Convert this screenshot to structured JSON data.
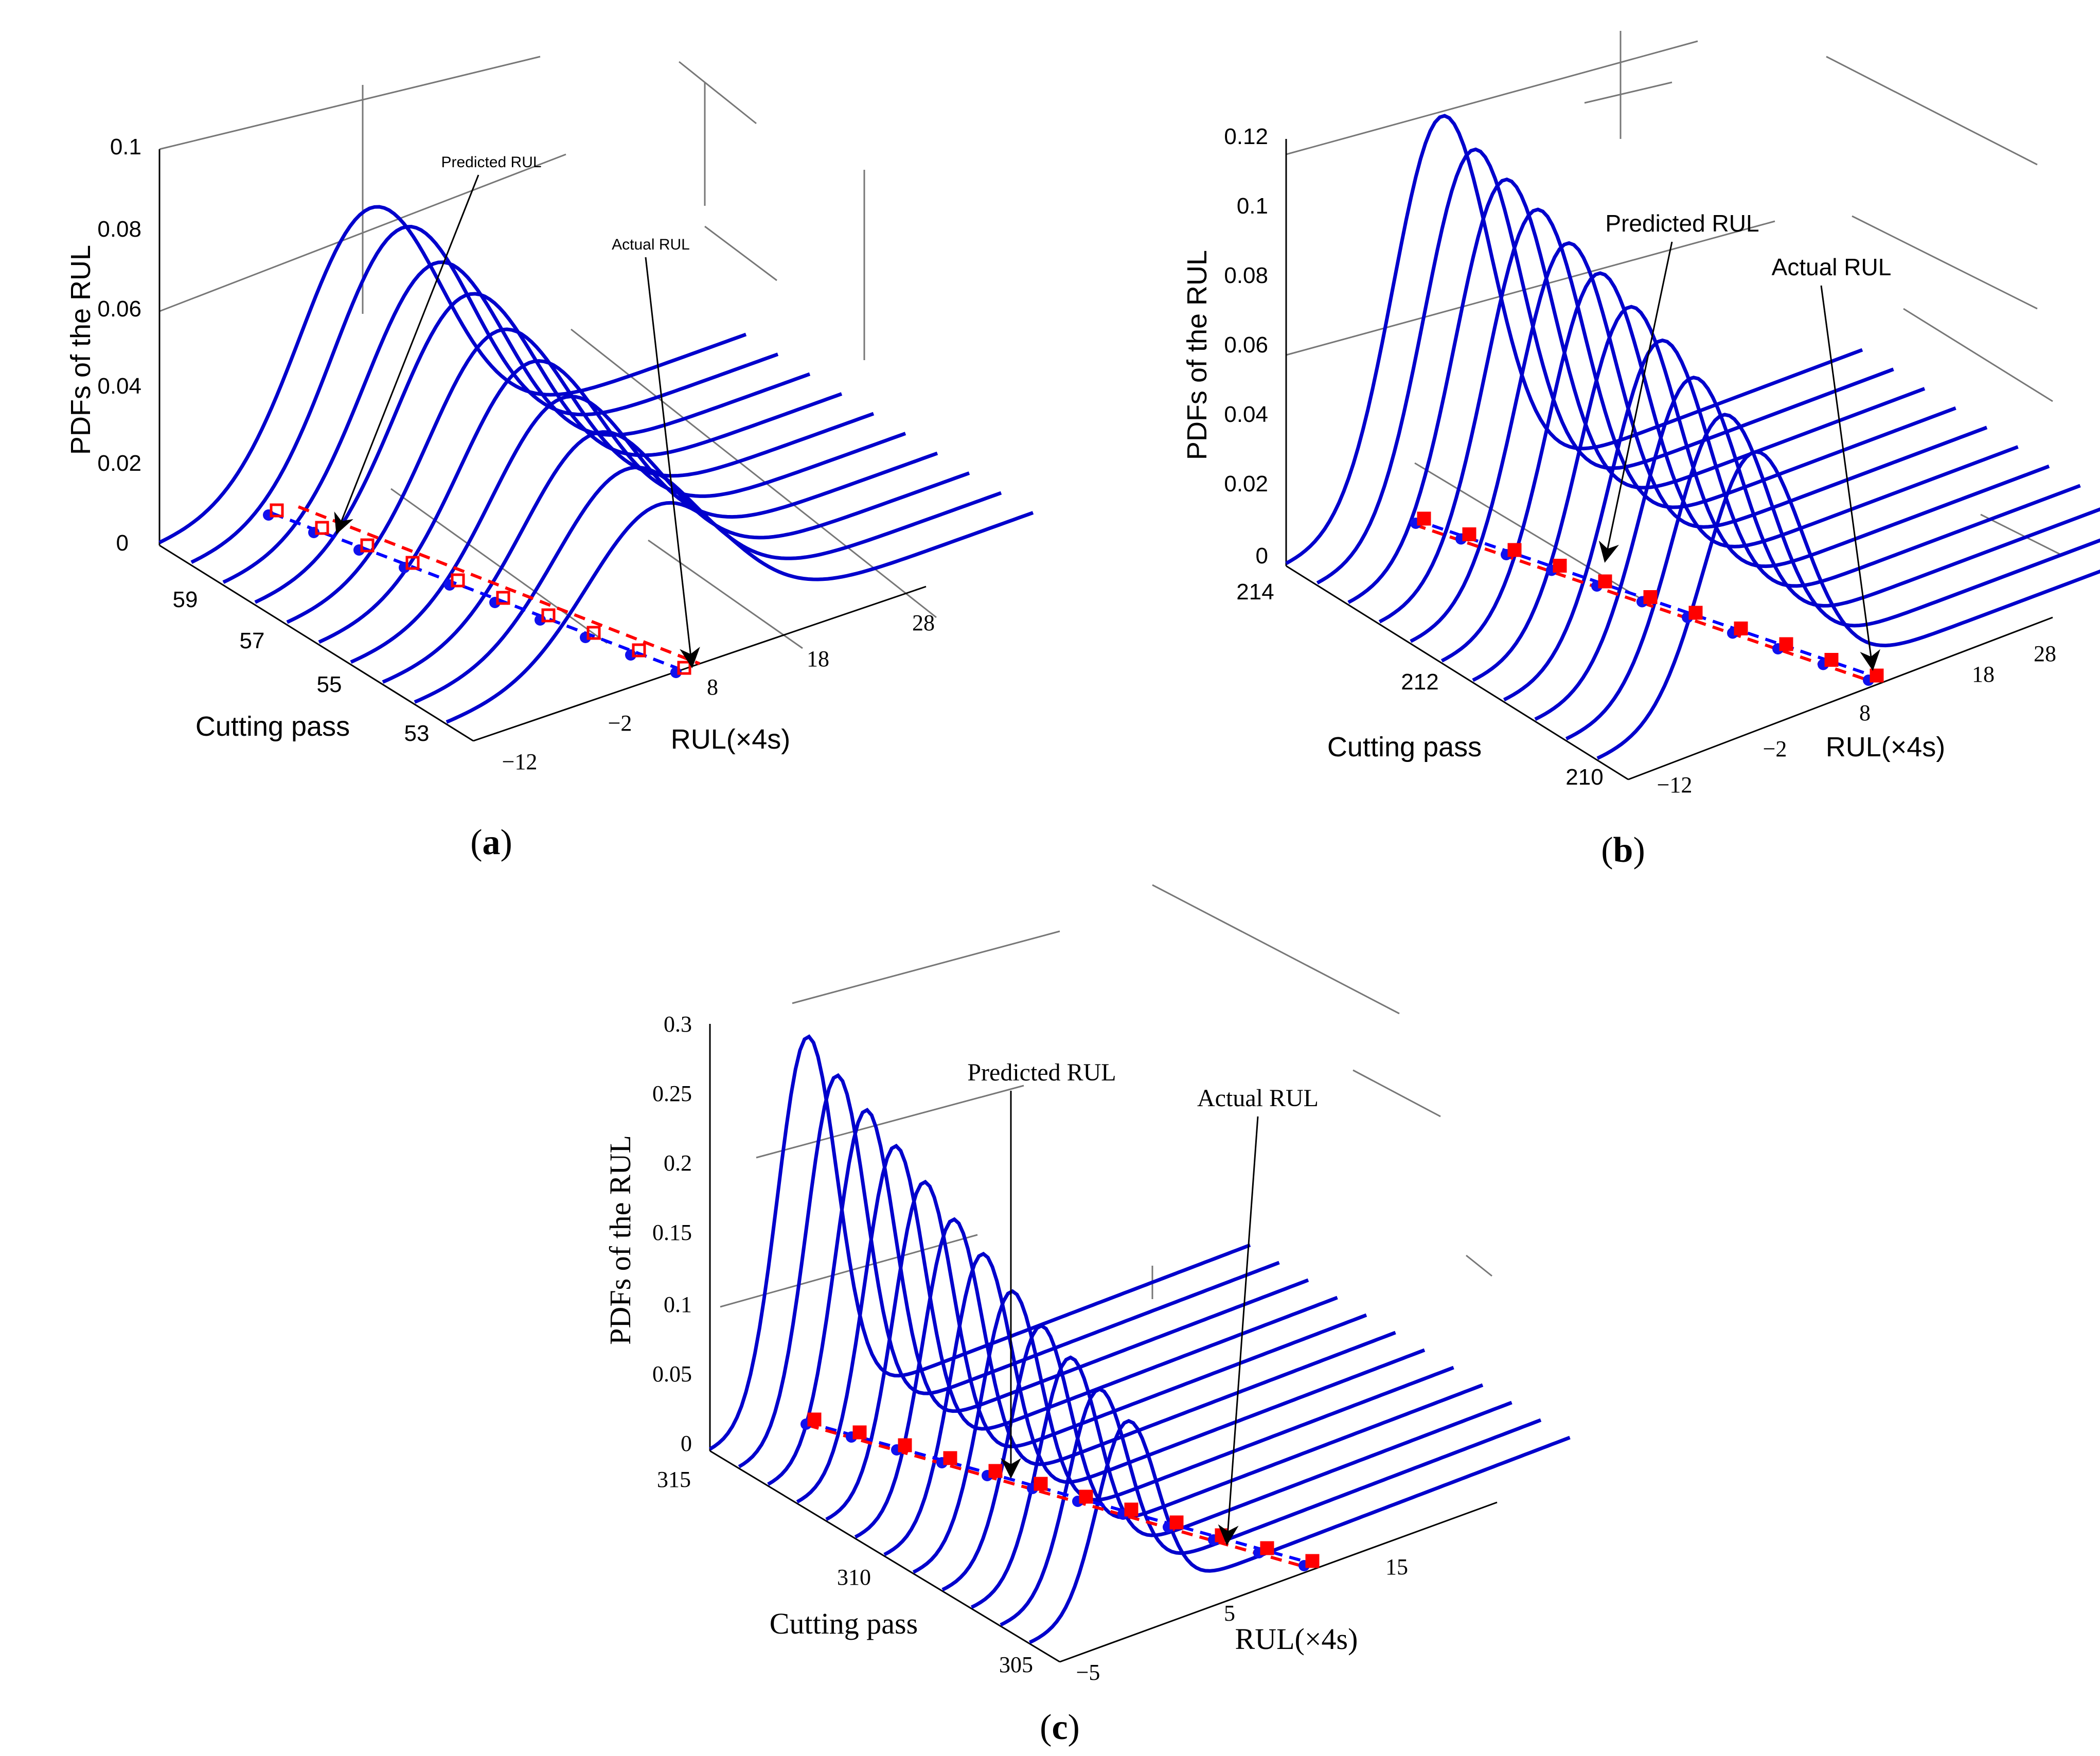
{
  "chart_data": [
    {
      "type": "line",
      "panel": "a",
      "caption_letter": "a",
      "zlabel": "PDFs of the RUL",
      "xlabel": "RUL(×4s)",
      "ylabel": "Cutting pass",
      "z_ticks": [
        "0",
        "0.02",
        "0.04",
        "0.06",
        "0.08",
        "0.1"
      ],
      "x_ticks": [
        "−12",
        "−2",
        "8",
        "18",
        "28"
      ],
      "y_ticks": [
        "53",
        "55",
        "57",
        "59"
      ],
      "annotations": [
        "Predicted RUL",
        "Actual RUL"
      ],
      "pdf_peaks": [
        0.066,
        0.066,
        0.062,
        0.059,
        0.055,
        0.052,
        0.048,
        0.044,
        0.04,
        0.036
      ],
      "predicted_rul": [
        18,
        16,
        14,
        12,
        10,
        8,
        6,
        4,
        2,
        0
      ],
      "actual_rul": [
        19,
        17,
        15,
        13,
        11,
        9,
        7,
        5,
        3,
        1
      ]
    },
    {
      "type": "line",
      "panel": "b",
      "caption_letter": "b",
      "zlabel": "PDFs of the RUL",
      "xlabel": "RUL(×4s)",
      "ylabel": "Cutting pass",
      "z_ticks": [
        "0",
        "0.02",
        "0.04",
        "0.06",
        "0.08",
        "0.1",
        "0.12"
      ],
      "x_ticks": [
        "−12",
        "−2",
        "8",
        "18",
        "28"
      ],
      "y_ticks": [
        "210",
        "212",
        "214"
      ],
      "annotations": [
        "Predicted RUL",
        "Actual RUL"
      ],
      "pdf_peaks": [
        0.11,
        0.106,
        0.103,
        0.1,
        0.096,
        0.093,
        0.089,
        0.085,
        0.08,
        0.075,
        0.07
      ],
      "predicted_rul": [
        19,
        17,
        15,
        13,
        11,
        9,
        7,
        5,
        3,
        1,
        -1
      ],
      "actual_rul": [
        19,
        17,
        15,
        13,
        11,
        9,
        7,
        5,
        3,
        1,
        -1
      ]
    },
    {
      "type": "line",
      "panel": "c",
      "caption_letter": "c",
      "zlabel": "PDFs of the RUL",
      "xlabel": "RUL(×4s)",
      "ylabel": "Cutting pass",
      "z_ticks": [
        "0",
        "0.05",
        "0.1",
        "0.15",
        "0.2",
        "0.25",
        "0.3"
      ],
      "x_ticks": [
        "−5",
        "5",
        "15"
      ],
      "y_ticks": [
        "305",
        "310",
        "315"
      ],
      "annotations": [
        "Predicted RUL",
        "Actual RUL"
      ],
      "pdf_peaks": [
        0.265,
        0.25,
        0.238,
        0.225,
        0.212,
        0.198,
        0.186,
        0.172,
        0.16,
        0.15,
        0.14,
        0.13
      ],
      "predicted_rul": [
        12,
        11,
        10,
        9,
        8,
        7,
        6,
        5,
        4,
        3,
        2,
        1
      ],
      "actual_rul": [
        12,
        11,
        10,
        9,
        8,
        7,
        6,
        5,
        4,
        3,
        2,
        1
      ]
    }
  ]
}
